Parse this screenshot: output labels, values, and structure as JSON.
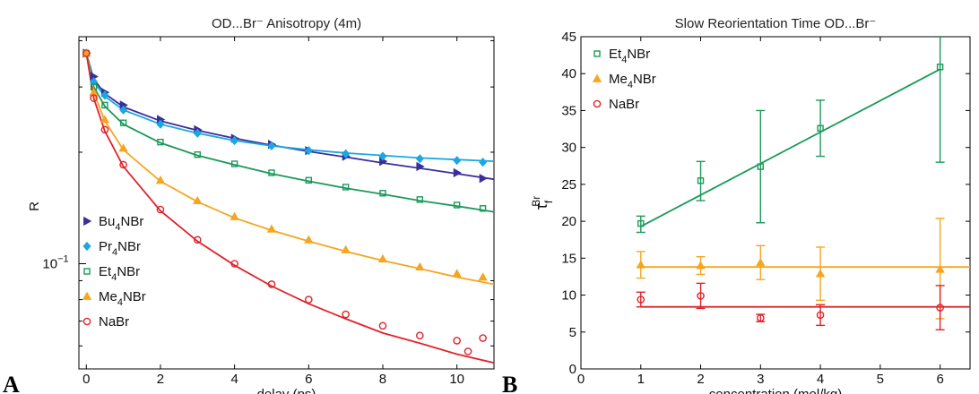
{
  "chart_data": [
    {
      "type": "scatter",
      "panel_label": "A",
      "title": "OD...Br⁻ Anisotropy (4m)",
      "xlabel": "delay (ps)",
      "ylabel": "R",
      "xlim": [
        -0.2,
        11
      ],
      "ylim": [
        0.052,
        0.41
      ],
      "y_scale": "log",
      "x_ticks": [
        0,
        2,
        4,
        6,
        8,
        10
      ],
      "y_ticks": [
        {
          "value": 0.1,
          "base": "10",
          "exp": "−1"
        }
      ],
      "legend_position": "bottom-left",
      "series": [
        {
          "name": "Bu",
          "sub": "4",
          "suffix": "NBr",
          "color": "#3a2f9a",
          "marker": "triangle-right",
          "x": [
            0,
            0.2,
            0.5,
            1,
            2,
            3,
            4,
            5,
            6,
            7,
            8,
            9,
            10,
            10.7
          ],
          "y": [
            0.37,
            0.32,
            0.29,
            0.268,
            0.245,
            0.23,
            0.218,
            0.21,
            0.202,
            0.195,
            0.189,
            0.183,
            0.176,
            0.17
          ]
        },
        {
          "name": "Pr",
          "sub": "4",
          "suffix": "NBr",
          "color": "#1ba7e0",
          "marker": "diamond",
          "x": [
            0,
            0.2,
            0.5,
            1,
            2,
            3,
            4,
            5,
            6,
            7,
            8,
            9,
            10,
            10.7
          ],
          "y": [
            0.37,
            0.31,
            0.285,
            0.26,
            0.238,
            0.225,
            0.215,
            0.208,
            0.202,
            0.198,
            0.195,
            0.192,
            0.19,
            0.188
          ]
        },
        {
          "name": "Et",
          "sub": "4",
          "suffix": "NBr",
          "color": "#1a9a5a",
          "marker": "square",
          "x": [
            0,
            0.2,
            0.5,
            1,
            2,
            3,
            4,
            5,
            6,
            7,
            8,
            9,
            10,
            10.7
          ],
          "y": [
            0.37,
            0.3,
            0.268,
            0.24,
            0.213,
            0.197,
            0.186,
            0.176,
            0.168,
            0.161,
            0.155,
            0.149,
            0.144,
            0.141
          ]
        },
        {
          "name": "Me",
          "sub": "4",
          "suffix": "NBr",
          "color": "#f7a520",
          "marker": "triangle-up",
          "x": [
            0,
            0.2,
            0.5,
            1,
            2,
            3,
            4,
            5,
            6,
            7,
            8,
            9,
            10,
            10.7
          ],
          "y": [
            0.37,
            0.29,
            0.245,
            0.205,
            0.168,
            0.148,
            0.134,
            0.124,
            0.116,
            0.109,
            0.103,
            0.098,
            0.094,
            0.092
          ]
        },
        {
          "name": "NaBr",
          "sub": "",
          "suffix": "",
          "color": "#e0232b",
          "marker": "circle",
          "x": [
            0,
            0.2,
            0.5,
            1,
            2,
            3,
            4,
            5,
            6,
            7,
            8,
            9,
            10,
            10.3,
            10.7
          ],
          "y": [
            0.37,
            0.28,
            0.23,
            0.185,
            0.14,
            0.116,
            0.1,
            0.088,
            0.08,
            0.073,
            0.068,
            0.064,
            0.062,
            0.058,
            0.063
          ]
        }
      ],
      "fits": [
        {
          "series": "Bu",
          "x": [
            0,
            0.2,
            0.5,
            1,
            2,
            3,
            4,
            5,
            6,
            7,
            8,
            9,
            10,
            11
          ],
          "y": [
            0.37,
            0.315,
            0.288,
            0.265,
            0.243,
            0.229,
            0.218,
            0.209,
            0.201,
            0.194,
            0.187,
            0.181,
            0.175,
            0.169
          ]
        },
        {
          "series": "Pr",
          "x": [
            0,
            0.2,
            0.5,
            1,
            2,
            3,
            4,
            5,
            6,
            7,
            8,
            9,
            10,
            11
          ],
          "y": [
            0.37,
            0.31,
            0.283,
            0.26,
            0.238,
            0.225,
            0.215,
            0.208,
            0.203,
            0.199,
            0.196,
            0.193,
            0.191,
            0.189
          ]
        },
        {
          "series": "Et",
          "x": [
            0,
            0.2,
            0.5,
            1,
            2,
            3,
            4,
            5,
            6,
            7,
            8,
            9,
            10,
            11
          ],
          "y": [
            0.37,
            0.3,
            0.266,
            0.238,
            0.212,
            0.196,
            0.185,
            0.175,
            0.167,
            0.16,
            0.154,
            0.148,
            0.143,
            0.138
          ]
        },
        {
          "series": "Me",
          "x": [
            0,
            0.2,
            0.5,
            1,
            2,
            3,
            4,
            5,
            6,
            7,
            8,
            9,
            10,
            11
          ],
          "y": [
            0.37,
            0.29,
            0.243,
            0.203,
            0.167,
            0.147,
            0.133,
            0.123,
            0.115,
            0.108,
            0.102,
            0.097,
            0.092,
            0.088
          ]
        },
        {
          "series": "NaBr",
          "x": [
            0,
            0.2,
            0.5,
            1,
            2,
            3,
            4,
            5,
            6,
            7,
            8,
            9,
            10,
            11
          ],
          "y": [
            0.37,
            0.28,
            0.228,
            0.183,
            0.139,
            0.115,
            0.099,
            0.087,
            0.078,
            0.071,
            0.065,
            0.061,
            0.057,
            0.054
          ]
        }
      ]
    },
    {
      "type": "scatter",
      "panel_label": "B",
      "title": "Slow Reorientation Time OD...Br⁻",
      "xlabel": "concentration (mol/kg)",
      "ylabel": "τ",
      "ylabel_sub": "f",
      "ylabel_sup": "Br",
      "xlim": [
        0,
        6.5
      ],
      "ylim": [
        0,
        45
      ],
      "x_ticks": [
        0,
        1,
        2,
        3,
        4,
        5,
        6
      ],
      "y_ticks": [
        0,
        5,
        10,
        15,
        20,
        25,
        30,
        35,
        40,
        45
      ],
      "legend_position": "top-left",
      "series": [
        {
          "name": "Et",
          "sub": "4",
          "suffix": "NBr",
          "color": "#1a9a5a",
          "marker": "square",
          "x": [
            1,
            2,
            3,
            4,
            6
          ],
          "y": [
            19.7,
            25.5,
            27.4,
            32.6,
            40.9
          ],
          "err_low": [
            1.2,
            2.7,
            7.6,
            3.8,
            12.9
          ],
          "err_high": [
            1.0,
            2.6,
            7.6,
            3.8,
            12.9
          ]
        },
        {
          "name": "Me",
          "sub": "4",
          "suffix": "NBr",
          "color": "#f7a520",
          "marker": "triangle-up",
          "x": [
            1,
            2,
            3,
            4,
            6
          ],
          "y": [
            14.1,
            14.0,
            14.4,
            12.9,
            13.5
          ],
          "err_low": [
            1.8,
            1.2,
            2.3,
            3.6,
            6.7
          ],
          "err_high": [
            1.8,
            1.2,
            2.3,
            3.6,
            6.9
          ]
        },
        {
          "name": "NaBr",
          "sub": "",
          "suffix": "",
          "color": "#e0232b",
          "marker": "circle",
          "x": [
            1,
            2,
            3,
            4,
            6
          ],
          "y": [
            9.4,
            9.9,
            6.9,
            7.3,
            8.3
          ],
          "err_low": [
            1.0,
            1.7,
            0.5,
            1.4,
            3.0
          ],
          "err_high": [
            1.0,
            1.7,
            0.5,
            1.4,
            3.0
          ]
        }
      ],
      "fits": [
        {
          "series": "Et",
          "x": [
            1,
            6
          ],
          "y": [
            19.3,
            40.6
          ]
        },
        {
          "series": "Me",
          "x": [
            1,
            6.5
          ],
          "y": [
            13.8,
            13.8
          ]
        },
        {
          "series": "NaBr",
          "x": [
            1,
            6.5
          ],
          "y": [
            8.4,
            8.4
          ]
        }
      ]
    }
  ]
}
